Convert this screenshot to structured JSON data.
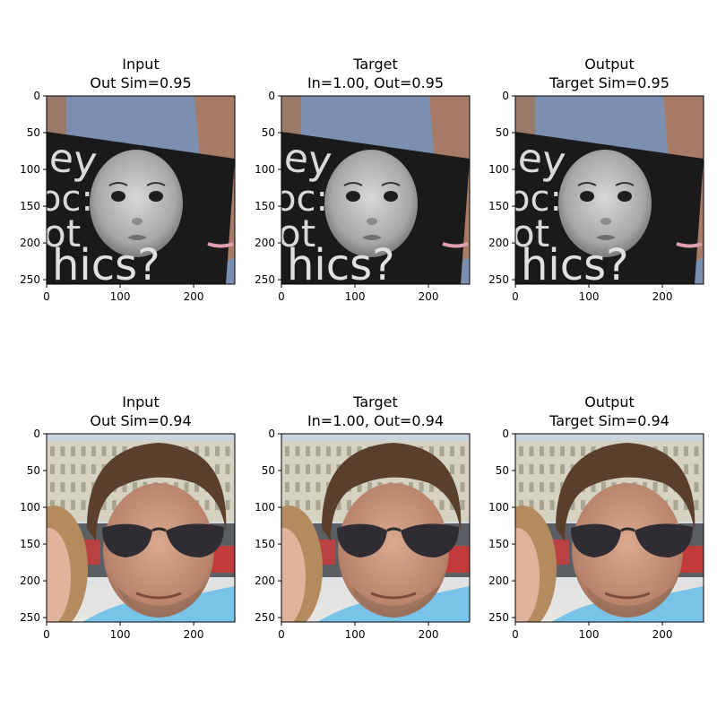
{
  "chart_data": [
    {
      "type": "image",
      "title_line1": "Input",
      "title_line2": "Out Sim=0.95",
      "xticks": [
        "0",
        "100",
        "200"
      ],
      "yticks": [
        "0",
        "50",
        "100",
        "150",
        "200",
        "250"
      ],
      "xlim": [
        0,
        256
      ],
      "ylim": [
        256,
        0
      ],
      "scene": "baby",
      "sign_text": "hics?",
      "sign_top_text": "ey",
      "sign_mid_text": "oc:",
      "sign_row3_text": "ot"
    },
    {
      "type": "image",
      "title_line1": "Target",
      "title_line2": "In=1.00, Out=0.95",
      "xticks": [
        "0",
        "100",
        "200"
      ],
      "yticks": [
        "0",
        "50",
        "100",
        "150",
        "200",
        "250"
      ],
      "xlim": [
        0,
        256
      ],
      "ylim": [
        256,
        0
      ],
      "scene": "baby",
      "sign_text": "hics?",
      "sign_top_text": "ey",
      "sign_mid_text": "oc:",
      "sign_row3_text": "ot"
    },
    {
      "type": "image",
      "title_line1": "Output",
      "title_line2": "Target Sim=0.95",
      "xticks": [
        "0",
        "100",
        "200"
      ],
      "yticks": [
        "0",
        "50",
        "100",
        "150",
        "200",
        "250"
      ],
      "xlim": [
        0,
        256
      ],
      "ylim": [
        256,
        0
      ],
      "scene": "baby",
      "sign_text": "hics?",
      "sign_top_text": "ey",
      "sign_mid_text": "oc:",
      "sign_row3_text": "ot"
    },
    {
      "type": "image",
      "title_line1": "Input",
      "title_line2": "Out Sim=0.94",
      "xticks": [
        "0",
        "100",
        "200"
      ],
      "yticks": [
        "0",
        "50",
        "100",
        "150",
        "200",
        "250"
      ],
      "xlim": [
        0,
        256
      ],
      "ylim": [
        256,
        0
      ],
      "scene": "man"
    },
    {
      "type": "image",
      "title_line1": "Target",
      "title_line2": "In=1.00, Out=0.94",
      "xticks": [
        "0",
        "100",
        "200"
      ],
      "yticks": [
        "0",
        "50",
        "100",
        "150",
        "200",
        "250"
      ],
      "xlim": [
        0,
        256
      ],
      "ylim": [
        256,
        0
      ],
      "scene": "man"
    },
    {
      "type": "image",
      "title_line1": "Output",
      "title_line2": "Target Sim=0.94",
      "xticks": [
        "0",
        "100",
        "200"
      ],
      "yticks": [
        "0",
        "50",
        "100",
        "150",
        "200",
        "250"
      ],
      "xlim": [
        0,
        256
      ],
      "ylim": [
        256,
        0
      ],
      "scene": "man"
    }
  ]
}
